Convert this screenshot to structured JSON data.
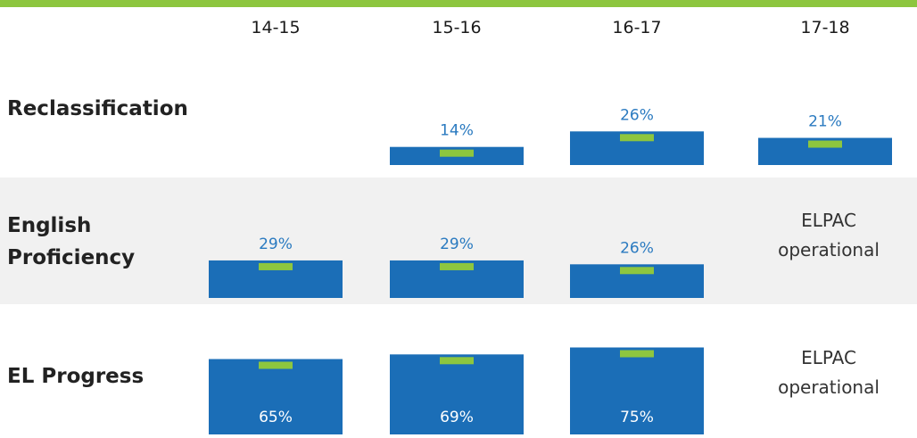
{
  "chart_data": {
    "type": "bar",
    "title": "",
    "categories": [
      "14-15",
      "15-16",
      "16-17",
      "17-18"
    ],
    "series": [
      {
        "name": "Reclassification",
        "label_lines": [
          "Reclassification"
        ],
        "values": [
          null,
          14,
          26,
          21
        ],
        "value_labels": [
          "",
          "14%",
          "26%",
          "21%"
        ],
        "notes": [
          "",
          "",
          "",
          ""
        ],
        "label_position": "above",
        "shaded": false
      },
      {
        "name": "English Proficiency",
        "label_lines": [
          "English",
          "Proficiency"
        ],
        "values": [
          29,
          29,
          26,
          null
        ],
        "value_labels": [
          "29%",
          "29%",
          "26%",
          ""
        ],
        "notes": [
          "",
          "",
          "",
          "ELPAC operational"
        ],
        "note_lines": [
          "ELPAC",
          "operational"
        ],
        "label_position": "above",
        "shaded": true
      },
      {
        "name": "EL Progress",
        "label_lines": [
          "EL Progress"
        ],
        "values": [
          65,
          69,
          75,
          null
        ],
        "value_labels": [
          "65%",
          "69%",
          "75%",
          ""
        ],
        "notes": [
          "",
          "",
          "",
          "ELPAC operational"
        ],
        "note_lines": [
          "ELPAC",
          "operational"
        ],
        "label_position": "inside",
        "shaded": false
      }
    ],
    "target_markers": true,
    "grid": false,
    "legend": "none"
  },
  "colors": {
    "bar": "#1b6eb7",
    "target_marker": "#8dc63f",
    "accent_bar": "#8dc63f",
    "band": "#f1f1f1"
  }
}
